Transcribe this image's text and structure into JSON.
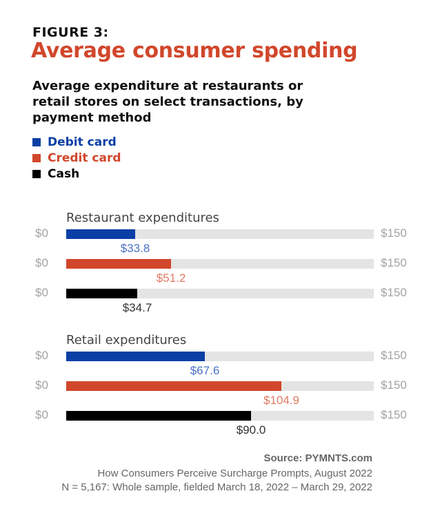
{
  "header": {
    "figure_label": "FIGURE 3:",
    "title": "Average consumer spending",
    "subtitle": "Average expenditure at restaurants or retail stores on select transactions, by payment method"
  },
  "colors": {
    "debit": "#0a3fa6",
    "credit": "#d1472b",
    "cash": "#000000",
    "debit_label": "#4a72c4",
    "credit_label": "#e07a62",
    "cash_label": "#333333",
    "track": "#e4e4e4"
  },
  "chart_data": {
    "type": "bar",
    "orientation": "horizontal",
    "title": "Average consumer spending",
    "subtitle": "Average expenditure at restaurants or retail stores on select transactions, by payment method",
    "legend": [
      "Debit card",
      "Credit card",
      "Cash"
    ],
    "legend_position": "top-left",
    "axis_min_label": "$0",
    "axis_max_label": "$150",
    "xlim": [
      0,
      150
    ],
    "grid": false,
    "groups": [
      {
        "name": "Restaurant expenditures",
        "series": [
          {
            "name": "Debit card",
            "value": 33.8,
            "label": "$33.8"
          },
          {
            "name": "Credit card",
            "value": 51.2,
            "label": "$51.2"
          },
          {
            "name": "Cash",
            "value": 34.7,
            "label": "$34.7"
          }
        ]
      },
      {
        "name": "Retail expenditures",
        "series": [
          {
            "name": "Debit card",
            "value": 67.6,
            "label": "$67.6"
          },
          {
            "name": "Credit card",
            "value": 104.9,
            "label": "$104.9"
          },
          {
            "name": "Cash",
            "value": 90.0,
            "label": "$90.0"
          }
        ]
      }
    ]
  },
  "footer": {
    "source": "Source: PYMNTS.com",
    "report": "How Consumers Perceive Surcharge Prompts, August 2022",
    "sample": "N = 5,167: Whole sample, fielded March 18, 2022 – March 29, 2022"
  }
}
